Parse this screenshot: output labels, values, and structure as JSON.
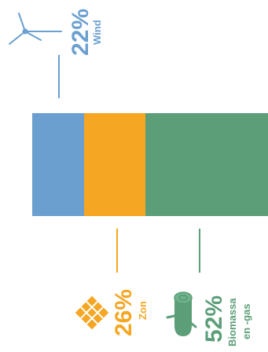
{
  "chart_data": {
    "type": "bar",
    "orientation": "stacked-horizontal",
    "series": [
      {
        "name": "Wind",
        "value": 22,
        "percent_label": "22%",
        "color": "#6a9fd0",
        "icon": "wind-turbine-icon"
      },
      {
        "name": "Zon",
        "value": 26,
        "percent_label": "26%",
        "color": "#f5a623",
        "icon": "solar-panel-icon"
      },
      {
        "name": "Biomassa en -gas",
        "label_lines": [
          "Biomassa",
          "en -gas"
        ],
        "value": 52,
        "percent_label": "52%",
        "color": "#5b9e78",
        "icon": "log-icon"
      }
    ],
    "total": 100
  }
}
